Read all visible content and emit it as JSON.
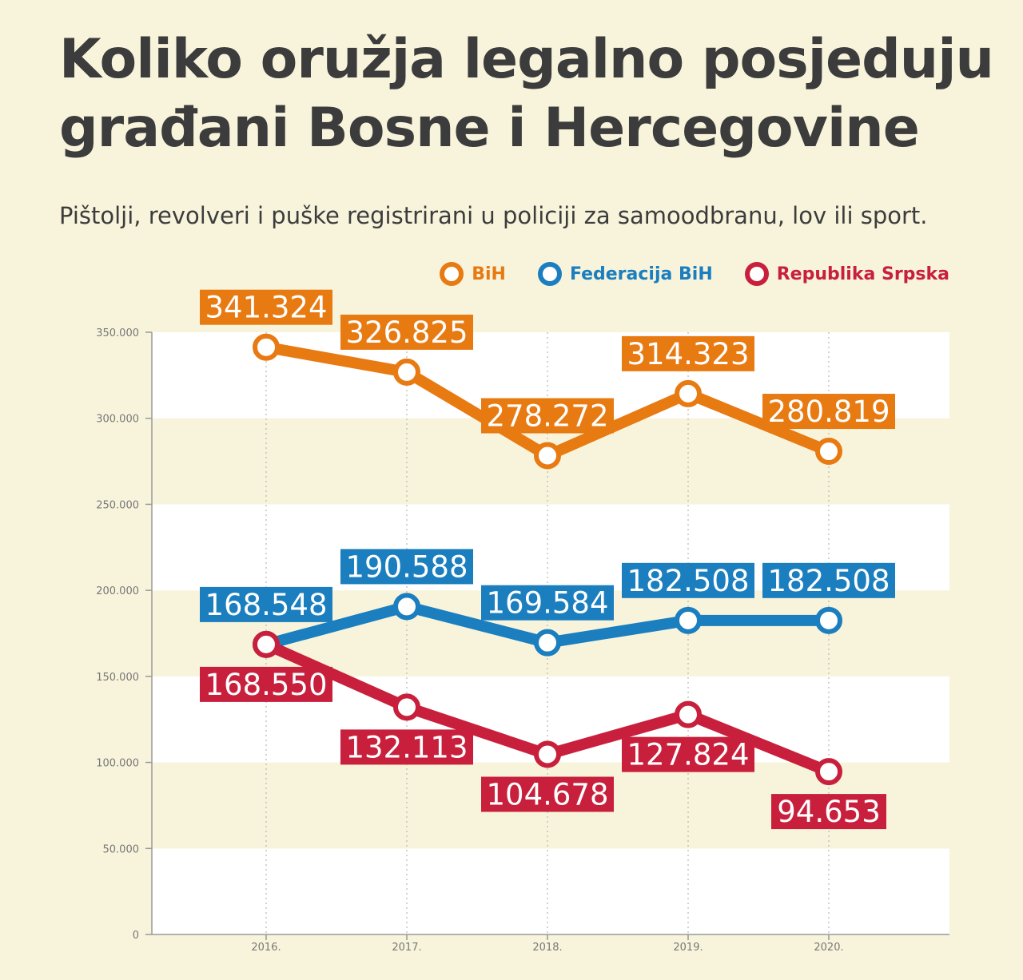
{
  "title": "Koliko oružja legalno posjeduju građani Bosne i Hercegovine",
  "subtitle": "Pištolji, revolveri i puške registrirani u policiji za samoodbranu, lov ili sport.",
  "legend": [
    {
      "label": "BiH",
      "color": "#e87a12"
    },
    {
      "label": "Federacija BiH",
      "color": "#1a7ebf"
    },
    {
      "label": "Republika Srpska",
      "color": "#c8203c"
    }
  ],
  "chart_data": {
    "type": "line",
    "title": "Koliko oružja legalno posjeduju građani Bosne i Hercegovine",
    "subtitle": "Pištolji, revolveri i puške registrirani u policiji za samoodbranu, lov ili sport.",
    "categories": [
      "2016.",
      "2017.",
      "2018.",
      "2019.",
      "2020."
    ],
    "ylim": [
      0,
      350000
    ],
    "yticks": [
      0,
      50000,
      100000,
      150000,
      200000,
      250000,
      300000,
      350000
    ],
    "ytick_labels": [
      "0",
      "50.000",
      "100.000",
      "150.000",
      "200.000",
      "250.000",
      "300.000",
      "350.000"
    ],
    "grid": "alternating horizontal bands, dotted vertical lines",
    "legend_position": "top-right",
    "series": [
      {
        "name": "BiH",
        "color": "#e87a12",
        "label_position": "above",
        "values": [
          341324,
          326825,
          278272,
          314323,
          280819
        ],
        "labels": [
          "341.324",
          "326.825",
          "278.272",
          "314.323",
          "280.819"
        ]
      },
      {
        "name": "Federacija BiH",
        "color": "#1a7ebf",
        "label_position": "above",
        "values": [
          168548,
          190588,
          169584,
          182508,
          182508
        ],
        "labels": [
          "168.548",
          "190.588",
          "169.584",
          "182.508",
          "182.508"
        ]
      },
      {
        "name": "Republika Srpska",
        "color": "#c8203c",
        "label_position": "below",
        "values": [
          168550,
          132113,
          104678,
          127824,
          94653
        ],
        "labels": [
          "168.550",
          "132.113",
          "104.678",
          "127.824",
          "94.653"
        ]
      }
    ]
  }
}
